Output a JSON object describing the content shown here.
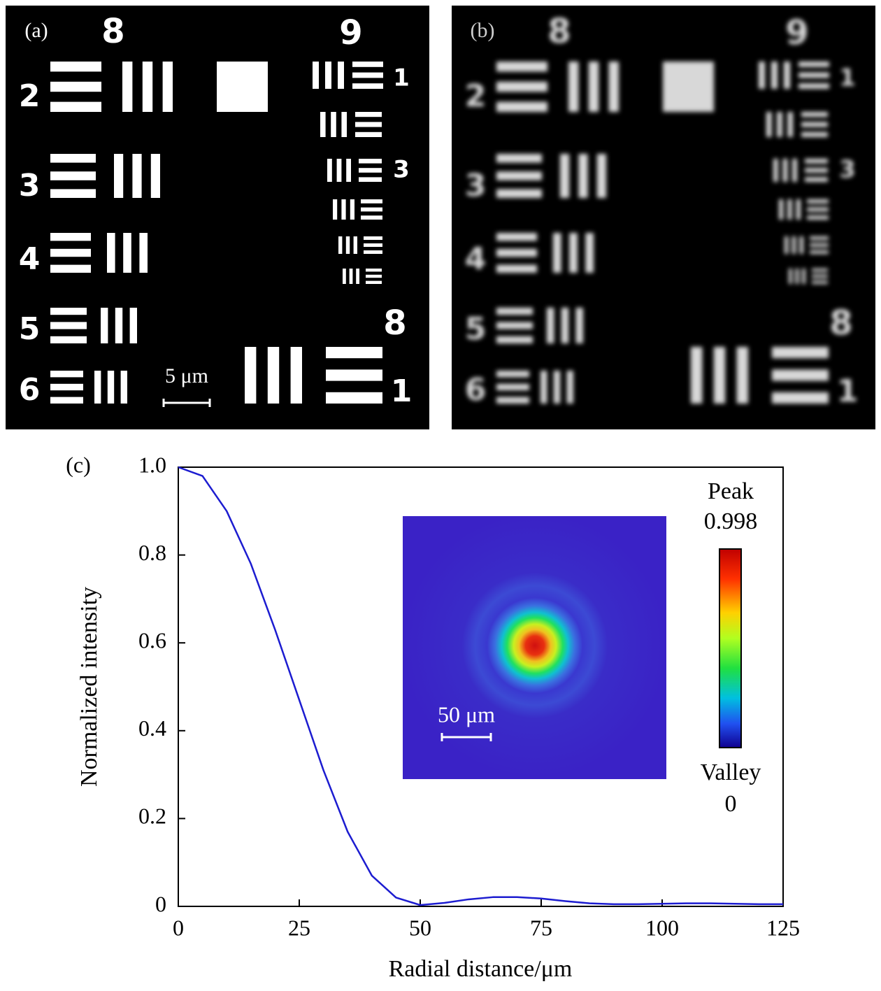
{
  "panel_a": {
    "label": "(a)",
    "group_labels": [
      "8",
      "9",
      "8"
    ],
    "element_labels": [
      "2",
      "3",
      "4",
      "5",
      "6",
      "1",
      "3",
      "1"
    ],
    "scale_bar": "5 μm"
  },
  "panel_b": {
    "label": "(b)",
    "group_labels": [
      "8",
      "9",
      "8"
    ],
    "element_labels": [
      "2",
      "3",
      "4",
      "5",
      "6",
      "1",
      "3",
      "1"
    ]
  },
  "chart_data": {
    "type": "line",
    "panel_label": "(c)",
    "x_label": "Radial distance/μm",
    "y_label": "Normalized intensity",
    "x": [
      0,
      5,
      10,
      15,
      20,
      25,
      30,
      35,
      40,
      45,
      50,
      55,
      60,
      65,
      70,
      75,
      80,
      85,
      90,
      95,
      100,
      105,
      110,
      115,
      120,
      125
    ],
    "values": [
      1.0,
      0.98,
      0.9,
      0.78,
      0.63,
      0.47,
      0.31,
      0.17,
      0.07,
      0.02,
      0.003,
      0.008,
      0.016,
      0.021,
      0.021,
      0.018,
      0.012,
      0.007,
      0.005,
      0.005,
      0.006,
      0.007,
      0.007,
      0.006,
      0.005,
      0.005
    ],
    "color": "#1c1cd0",
    "xlim": [
      0,
      125
    ],
    "xticks": [
      0,
      25,
      50,
      75,
      100,
      125
    ],
    "ylim": [
      0,
      1
    ],
    "yticks": [
      0,
      0.2,
      0.4,
      0.6,
      0.8,
      {
        "value": 1,
        "label": "1.0"
      }
    ],
    "grid": false,
    "inset": {
      "scale_bar": "50 μm",
      "colorbar": {
        "max_label": "Peak",
        "max": 0.998,
        "min_label": "Valley",
        "min": 0
      }
    }
  }
}
